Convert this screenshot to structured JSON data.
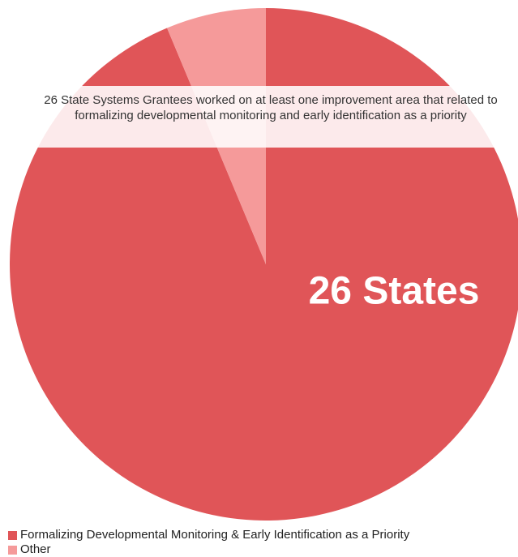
{
  "chart_data": {
    "type": "pie",
    "categories": [
      "Formalizing Developmental Monitoring & Early Identification as a Priority",
      "Other"
    ],
    "values": [
      26,
      1.75
    ],
    "value_labels": [
      "26 States",
      null
    ],
    "colors": [
      "#e05558",
      "#f59a9a"
    ],
    "annotation": "26 State Systems Grantees worked on at least one improvement area that related to formalizing developmental monitoring and early identification as a priority",
    "legend": "bottom-left"
  }
}
